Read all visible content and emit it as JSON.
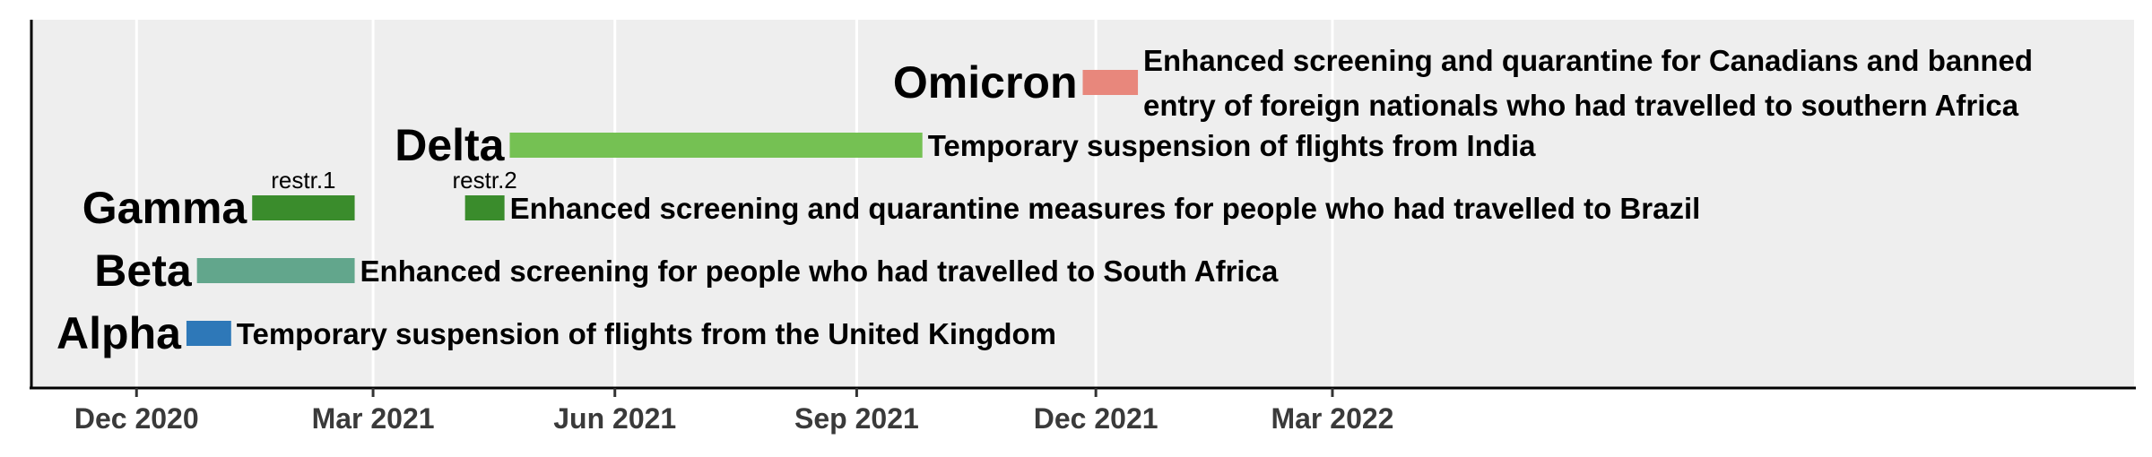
{
  "chart_data": {
    "type": "timeline",
    "x_axis": {
      "type": "date",
      "range": [
        "2020-10-22",
        "2022-12-31"
      ],
      "ticks": [
        {
          "date": "2020-12-01",
          "label": "Dec 2020"
        },
        {
          "date": "2021-03-01",
          "label": "Mar 2021"
        },
        {
          "date": "2021-06-01",
          "label": "Jun 2021"
        },
        {
          "date": "2021-09-01",
          "label": "Sep 2021"
        },
        {
          "date": "2021-12-01",
          "label": "Dec 2021"
        },
        {
          "date": "2022-03-01",
          "label": "Mar 2022"
        }
      ],
      "grid": true
    },
    "rows": [
      {
        "variant": "Alpha",
        "color": "#2e78b8",
        "bars": [
          {
            "start": "2020-12-20",
            "end": "2021-01-06"
          }
        ],
        "annotation": [
          "Temporary suspension of flights from the United Kingdom"
        ]
      },
      {
        "variant": "Beta",
        "color": "#62a68c",
        "bars": [
          {
            "start": "2020-12-24",
            "end": "2021-02-22"
          }
        ],
        "annotation": [
          "Enhanced screening for people who had travelled to South Africa"
        ]
      },
      {
        "variant": "Gamma",
        "color": "#3a8c2c",
        "bars": [
          {
            "start": "2021-01-14",
            "end": "2021-02-22",
            "label": "restr.1"
          },
          {
            "start": "2021-04-05",
            "end": "2021-04-20",
            "label": "restr.2"
          }
        ],
        "annotation": [
          "Enhanced screening and quarantine measures for people who had travelled to Brazil"
        ]
      },
      {
        "variant": "Delta",
        "color": "#75c153",
        "bars": [
          {
            "start": "2021-04-22",
            "end": "2021-09-26"
          }
        ],
        "annotation": [
          "Temporary suspension of flights from India"
        ]
      },
      {
        "variant": "Omicron",
        "color": "#e8877c",
        "bars": [
          {
            "start": "2021-11-26",
            "end": "2021-12-17"
          }
        ],
        "annotation": [
          "Enhanced screening and quarantine for Canadians and banned",
          "entry of foreign nationals who had travelled to southern Africa"
        ]
      }
    ]
  }
}
